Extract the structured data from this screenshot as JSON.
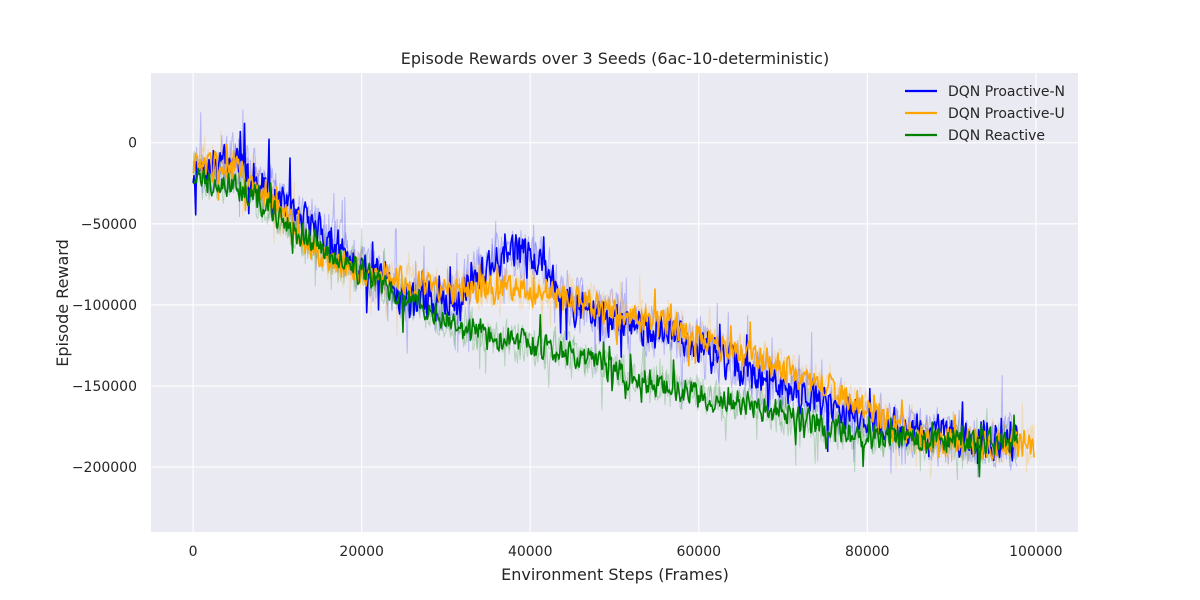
{
  "chart_data": {
    "type": "line",
    "title": "Episode Rewards over 3 Seeds (6ac-10-deterministic)",
    "xlabel": "Environment Steps (Frames)",
    "ylabel": "Episode Reward",
    "xlim": [
      -5000,
      105000
    ],
    "ylim": [
      -240000,
      43000
    ],
    "x_ticks": [
      0,
      20000,
      40000,
      60000,
      80000,
      100000
    ],
    "x_tick_labels": [
      "0",
      "20000",
      "40000",
      "60000",
      "80000",
      "100000"
    ],
    "y_ticks": [
      0,
      -50000,
      -100000,
      -150000,
      -200000
    ],
    "y_tick_labels": [
      "0",
      "−50000",
      "−100000",
      "−150000",
      "−200000"
    ],
    "grid": true,
    "legend_position": "top-right",
    "background_color": "#EAEAF2",
    "series": [
      {
        "name": "DQN Proactive-N",
        "color": "#0000FF",
        "noise": 14000,
        "band": 20000,
        "x_end": 97800,
        "points": [
          [
            0,
            -20000
          ],
          [
            5000,
            -10000
          ],
          [
            10000,
            -35000
          ],
          [
            15000,
            -55000
          ],
          [
            20000,
            -75000
          ],
          [
            25000,
            -95000
          ],
          [
            30000,
            -100000
          ],
          [
            35000,
            -75000
          ],
          [
            40000,
            -65000
          ],
          [
            45000,
            -100000
          ],
          [
            50000,
            -110000
          ],
          [
            55000,
            -115000
          ],
          [
            60000,
            -125000
          ],
          [
            65000,
            -140000
          ],
          [
            70000,
            -150000
          ],
          [
            75000,
            -160000
          ],
          [
            80000,
            -170000
          ],
          [
            85000,
            -178000
          ],
          [
            90000,
            -182000
          ],
          [
            95000,
            -185000
          ],
          [
            97800,
            -186000
          ]
        ]
      },
      {
        "name": "DQN Proactive-U",
        "color": "#FFA500",
        "noise": 11000,
        "band": 14000,
        "x_end": 99800,
        "points": [
          [
            0,
            -15000
          ],
          [
            5000,
            -15000
          ],
          [
            10000,
            -40000
          ],
          [
            15000,
            -70000
          ],
          [
            20000,
            -80000
          ],
          [
            25000,
            -85000
          ],
          [
            30000,
            -90000
          ],
          [
            35000,
            -90000
          ],
          [
            40000,
            -90000
          ],
          [
            45000,
            -95000
          ],
          [
            50000,
            -105000
          ],
          [
            55000,
            -110000
          ],
          [
            60000,
            -120000
          ],
          [
            65000,
            -130000
          ],
          [
            70000,
            -140000
          ],
          [
            75000,
            -150000
          ],
          [
            80000,
            -165000
          ],
          [
            85000,
            -180000
          ],
          [
            90000,
            -185000
          ],
          [
            95000,
            -185000
          ],
          [
            99800,
            -186000
          ]
        ]
      },
      {
        "name": "DQN Reactive",
        "color": "#008000",
        "noise": 10000,
        "band": 14000,
        "x_end": 97800,
        "points": [
          [
            0,
            -22000
          ],
          [
            5000,
            -25000
          ],
          [
            10000,
            -45000
          ],
          [
            15000,
            -65000
          ],
          [
            20000,
            -80000
          ],
          [
            25000,
            -95000
          ],
          [
            30000,
            -110000
          ],
          [
            35000,
            -120000
          ],
          [
            40000,
            -125000
          ],
          [
            45000,
            -130000
          ],
          [
            50000,
            -140000
          ],
          [
            55000,
            -150000
          ],
          [
            60000,
            -155000
          ],
          [
            65000,
            -160000
          ],
          [
            70000,
            -168000
          ],
          [
            75000,
            -175000
          ],
          [
            80000,
            -180000
          ],
          [
            85000,
            -183000
          ],
          [
            90000,
            -185000
          ],
          [
            95000,
            -185000
          ],
          [
            97800,
            -187000
          ]
        ]
      }
    ]
  }
}
